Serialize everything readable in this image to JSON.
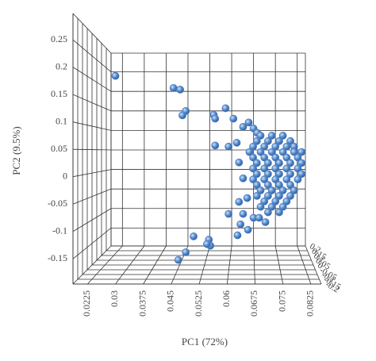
{
  "chart_data": {
    "type": "scatter3d",
    "xlabel": "PC1 (72%)",
    "ylabel": "PC2 (9.5%)",
    "xlim": [
      0.0186,
      0.0853
    ],
    "ylim": [
      -0.196,
      0.298
    ],
    "zlim": [
      -0.2,
      0.2
    ],
    "xticks": [
      0.0225,
      0.03,
      0.0375,
      0.045,
      0.0525,
      0.06,
      0.0675,
      0.075,
      0.0825
    ],
    "yticks": [
      -0.15,
      -0.1,
      -0.05,
      0,
      0.05,
      0.1,
      0.15,
      0.2,
      0.25
    ],
    "zticks": [
      -0.2,
      -0.15,
      -0.1,
      -0.05,
      0,
      0.05,
      0.1,
      0.15,
      0.2
    ],
    "grid": true,
    "series": [
      {
        "color": "#4a7fc1",
        "x": [
          0.03,
          0.0456,
          0.0474,
          0.0489,
          0.048,
          0.0564,
          0.0568,
          0.0596,
          0.0617,
          0.0568,
          0.0604,
          0.0626,
          0.0643,
          0.0658,
          0.0671,
          0.0681,
          0.0632,
          0.0643,
          0.0654,
          0.0632,
          0.0643,
          0.0604,
          0.0636,
          0.0628,
          0.0656,
          0.0671,
          0.0686,
          0.0703,
          0.051,
          0.0551,
          0.0555,
          0.0546,
          0.0489,
          0.0469,
          0.069,
          0.072,
          0.075,
          0.068,
          0.071,
          0.074,
          0.077,
          0.067,
          0.07,
          0.073,
          0.076,
          0.078,
          0.066,
          0.069,
          0.072,
          0.075,
          0.078,
          0.08,
          0.067,
          0.07,
          0.073,
          0.076,
          0.079,
          0.068,
          0.071,
          0.074,
          0.077,
          0.08,
          0.067,
          0.07,
          0.073,
          0.076,
          0.079,
          0.068,
          0.071,
          0.074,
          0.077,
          0.08,
          0.067,
          0.07,
          0.073,
          0.076,
          0.079,
          0.068,
          0.071,
          0.074,
          0.077,
          0.069,
          0.072,
          0.075,
          0.078,
          0.068,
          0.071,
          0.074,
          0.077,
          0.07,
          0.073,
          0.076,
          0.069,
          0.072,
          0.075,
          0.071,
          0.074
        ],
        "y": [
          0.184,
          0.162,
          0.159,
          0.12,
          0.112,
          0.113,
          0.106,
          0.125,
          0.106,
          0.057,
          0.055,
          0.062,
          0.091,
          0.099,
          0.088,
          0.08,
          0.026,
          -0.003,
          -0.039,
          -0.046,
          -0.068,
          -0.068,
          -0.087,
          -0.107,
          -0.097,
          -0.075,
          -0.075,
          -0.083,
          -0.109,
          -0.115,
          -0.126,
          -0.123,
          -0.138,
          -0.152,
          0.075,
          0.075,
          0.075,
          0.065,
          0.065,
          0.065,
          0.065,
          0.055,
          0.055,
          0.055,
          0.055,
          0.055,
          0.045,
          0.045,
          0.045,
          0.045,
          0.045,
          0.045,
          0.035,
          0.035,
          0.035,
          0.035,
          0.035,
          0.025,
          0.025,
          0.025,
          0.025,
          0.025,
          0.015,
          0.015,
          0.015,
          0.015,
          0.015,
          0.005,
          0.005,
          0.005,
          0.005,
          0.005,
          -0.005,
          -0.005,
          -0.005,
          -0.005,
          -0.005,
          -0.015,
          -0.015,
          -0.015,
          -0.015,
          -0.025,
          -0.025,
          -0.025,
          -0.025,
          -0.035,
          -0.035,
          -0.035,
          -0.035,
          -0.045,
          -0.045,
          -0.045,
          -0.055,
          -0.055,
          -0.055,
          -0.065,
          -0.065
        ]
      }
    ]
  }
}
